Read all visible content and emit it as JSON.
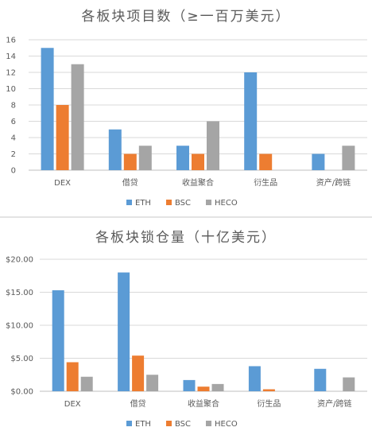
{
  "chart_data": [
    {
      "type": "bar",
      "title": "各板块项目数（≥一百万美元）",
      "categories": [
        "DEX",
        "借贷",
        "收益聚合",
        "衍生品",
        "资产/跨链"
      ],
      "series": [
        {
          "name": "ETH",
          "color": "#5b9bd5",
          "values": [
            15,
            5,
            3,
            12,
            2
          ]
        },
        {
          "name": "BSC",
          "color": "#ed7d31",
          "values": [
            8,
            2,
            2,
            2,
            0
          ]
        },
        {
          "name": "HECO",
          "color": "#a5a5a5",
          "values": [
            13,
            3,
            6,
            0,
            3
          ]
        }
      ],
      "ylim": [
        0,
        16
      ],
      "yticks": [
        0,
        2,
        4,
        6,
        8,
        10,
        12,
        14,
        16
      ],
      "ytick_labels": [
        "0",
        "2",
        "4",
        "6",
        "8",
        "10",
        "12",
        "14",
        "16"
      ],
      "grid": true,
      "legend": "bottom"
    },
    {
      "type": "bar",
      "title": "各板块锁仓量（十亿美元）",
      "categories": [
        "DEX",
        "借贷",
        "收益聚合",
        "衍生品",
        "资产/跨链"
      ],
      "series": [
        {
          "name": "ETH",
          "color": "#5b9bd5",
          "values": [
            15.3,
            18.0,
            1.7,
            3.8,
            3.4
          ]
        },
        {
          "name": "BSC",
          "color": "#ed7d31",
          "values": [
            4.4,
            5.4,
            0.7,
            0.3,
            0
          ]
        },
        {
          "name": "HECO",
          "color": "#a5a5a5",
          "values": [
            2.2,
            2.5,
            1.1,
            0,
            2.1
          ]
        }
      ],
      "ylim": [
        0,
        20
      ],
      "yticks": [
        0,
        5,
        10,
        15,
        20
      ],
      "ytick_labels": [
        "$0.00",
        "$5.00",
        "$10.00",
        "$15.00",
        "$20.00"
      ],
      "grid": true,
      "legend": "bottom"
    }
  ]
}
